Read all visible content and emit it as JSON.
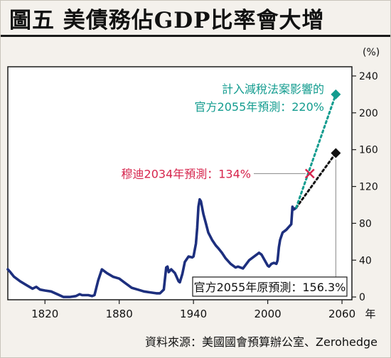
{
  "title": "圖五 美債務佔GDP比率會大增",
  "source": "資料來源：美國國會預算辦公室、Zerohedge",
  "chart_data": {
    "type": "line",
    "title": "圖五 美債務佔GDP比率會大增",
    "ylabel": "(%)",
    "xlabel": "年",
    "xlim": [
      1790,
      2068
    ],
    "ylim": [
      -3,
      250
    ],
    "x_ticks": [
      1820,
      1880,
      1940,
      2000,
      2060
    ],
    "y_ticks": [
      0,
      40,
      80,
      120,
      160,
      200,
      240
    ],
    "grid": false,
    "line_color": "#1d2f7e",
    "series": [
      {
        "values": [
          [
            1790,
            30
          ],
          [
            1792,
            27
          ],
          [
            1795,
            22
          ],
          [
            1800,
            17
          ],
          [
            1805,
            13
          ],
          [
            1810,
            9
          ],
          [
            1813,
            11
          ],
          [
            1816,
            8
          ],
          [
            1820,
            7
          ],
          [
            1825,
            6
          ],
          [
            1830,
            3
          ],
          [
            1835,
            0
          ],
          [
            1840,
            0
          ],
          [
            1845,
            1
          ],
          [
            1848,
            3
          ],
          [
            1850,
            2
          ],
          [
            1855,
            2
          ],
          [
            1858,
            1
          ],
          [
            1860,
            2
          ],
          [
            1863,
            18
          ],
          [
            1866,
            30
          ],
          [
            1868,
            28
          ],
          [
            1870,
            26
          ],
          [
            1875,
            22
          ],
          [
            1880,
            20
          ],
          [
            1885,
            15
          ],
          [
            1890,
            10
          ],
          [
            1895,
            8
          ],
          [
            1900,
            6
          ],
          [
            1905,
            5
          ],
          [
            1910,
            4
          ],
          [
            1913,
            4
          ],
          [
            1916,
            8
          ],
          [
            1918,
            32
          ],
          [
            1919,
            33
          ],
          [
            1920,
            27
          ],
          [
            1922,
            30
          ],
          [
            1925,
            26
          ],
          [
            1928,
            17
          ],
          [
            1929,
            16
          ],
          [
            1931,
            25
          ],
          [
            1933,
            38
          ],
          [
            1936,
            44
          ],
          [
            1939,
            43
          ],
          [
            1940,
            44
          ],
          [
            1942,
            58
          ],
          [
            1943,
            75
          ],
          [
            1944,
            98
          ],
          [
            1945,
            106
          ],
          [
            1946,
            104
          ],
          [
            1948,
            90
          ],
          [
            1950,
            80
          ],
          [
            1952,
            70
          ],
          [
            1955,
            62
          ],
          [
            1958,
            56
          ],
          [
            1960,
            53
          ],
          [
            1963,
            48
          ],
          [
            1966,
            42
          ],
          [
            1970,
            36
          ],
          [
            1974,
            32
          ],
          [
            1976,
            33
          ],
          [
            1980,
            31
          ],
          [
            1985,
            40
          ],
          [
            1990,
            45
          ],
          [
            1993,
            48
          ],
          [
            1995,
            46
          ],
          [
            2000,
            34
          ],
          [
            2001,
            33
          ],
          [
            2003,
            36
          ],
          [
            2005,
            37
          ],
          [
            2007,
            36
          ],
          [
            2008,
            40
          ],
          [
            2009,
            54
          ],
          [
            2010,
            62
          ],
          [
            2012,
            70
          ],
          [
            2015,
            73
          ],
          [
            2017,
            76
          ],
          [
            2019,
            79
          ],
          [
            2020,
            98
          ],
          [
            2021,
            95
          ],
          [
            2023,
            97
          ]
        ]
      }
    ],
    "projections": [
      {
        "label_lines": [
          "計入減稅法案影響的",
          "官方2055年預測：220%"
        ],
        "x": [
          2023,
          2055
        ],
        "y": [
          97,
          220
        ],
        "color": "#139c8f",
        "marker": "diamond"
      },
      {
        "label_lines": [
          "官方2055年原預測：156.3%"
        ],
        "x": [
          2023,
          2055
        ],
        "y": [
          97,
          156.3
        ],
        "color": "#111111",
        "marker": "diamond"
      },
      {
        "label_lines": [
          "穆迪2034年預測：134%"
        ],
        "x": [
          2034
        ],
        "y": [
          134
        ],
        "color": "#d6244c",
        "marker": "x"
      }
    ]
  }
}
